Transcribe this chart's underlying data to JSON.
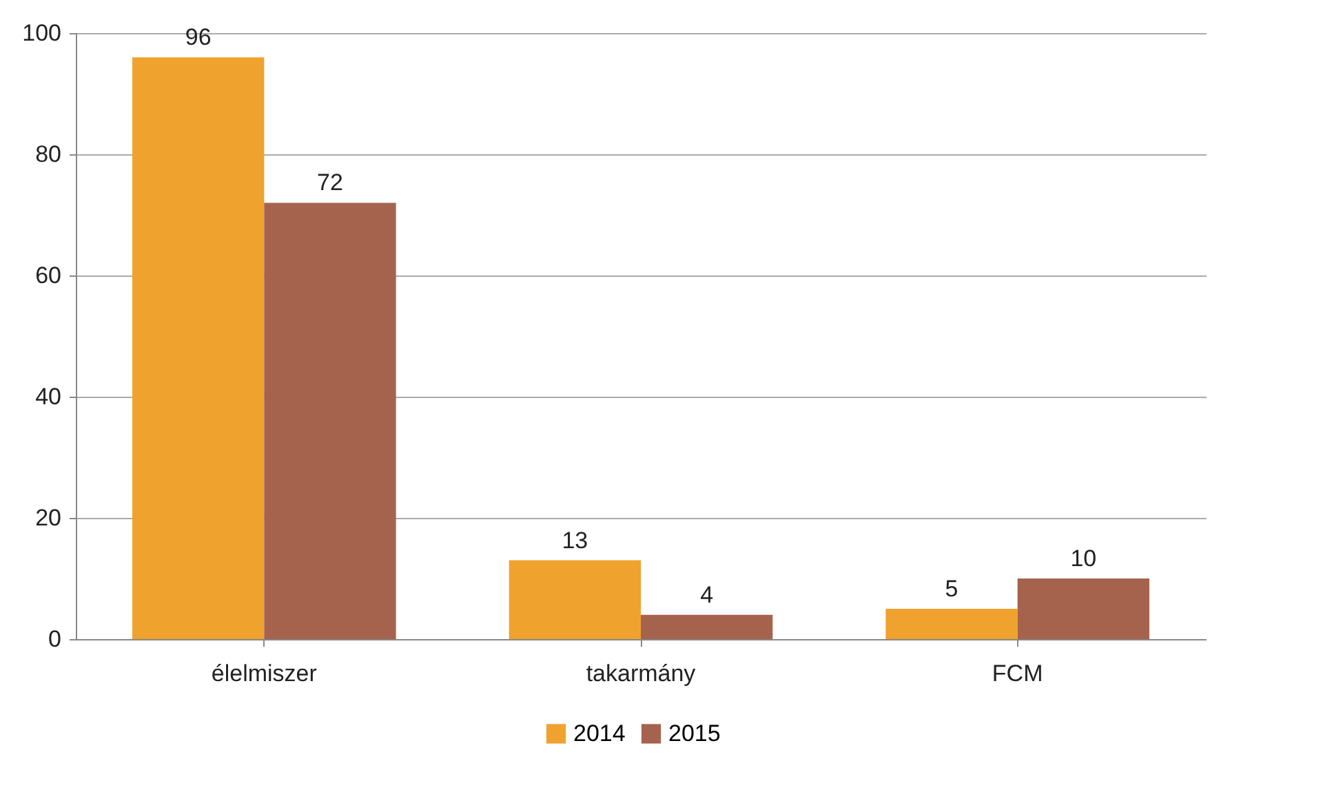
{
  "chart_data": {
    "type": "bar",
    "categories": [
      "élelmiszer",
      "takarmány",
      "FCM"
    ],
    "series": [
      {
        "name": "2014",
        "color": "#f0a22e",
        "values": [
          96,
          13,
          5
        ]
      },
      {
        "name": "2015",
        "color": "#a5634d",
        "values": [
          72,
          4,
          10
        ]
      }
    ],
    "ylim": [
      0,
      100
    ],
    "yticks": [
      0,
      20,
      40,
      60,
      80,
      100
    ],
    "grid": "y",
    "legend": "bottom",
    "data_labels": true
  }
}
